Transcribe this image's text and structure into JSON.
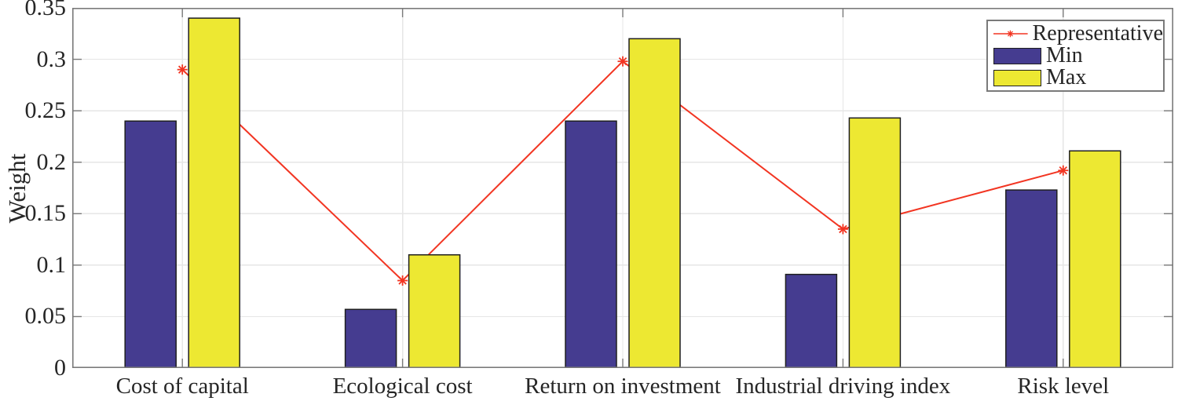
{
  "chart_data": {
    "type": "bar",
    "subtype": "grouped-bars-with-line-overlay",
    "categories": [
      "Cost of capital",
      "Ecological cost",
      "Return on investment",
      "Industrial driving index",
      "Risk level"
    ],
    "series": [
      {
        "name": "Representative",
        "type": "line",
        "marker": "asterisk",
        "color": "#f23522",
        "values": [
          0.29,
          0.085,
          0.298,
          0.135,
          0.192
        ]
      },
      {
        "name": "Min",
        "type": "bar",
        "color": "#453c90",
        "values": [
          0.24,
          0.057,
          0.24,
          0.091,
          0.173
        ]
      },
      {
        "name": "Max",
        "type": "bar",
        "color": "#ede832",
        "values": [
          0.34,
          0.11,
          0.32,
          0.243,
          0.211
        ]
      }
    ],
    "title": "",
    "xlabel": "",
    "ylabel": "Weight",
    "ylim": [
      0,
      0.35
    ],
    "yticks": [
      0,
      0.05,
      0.1,
      0.15,
      0.2,
      0.25,
      0.3,
      0.35
    ],
    "ytick_labels": [
      "0",
      "0.05",
      "0.1",
      "0.15",
      "0.2",
      "0.25",
      "0.3",
      "0.35"
    ],
    "grid": true,
    "legend": {
      "position": "top-right",
      "entries": [
        "Representative",
        "Min",
        "Max"
      ]
    }
  },
  "colors": {
    "axis_box": "#7a7a7a",
    "tick": "#7a7a7a",
    "grid": "#e6e6e6",
    "text": "#262626",
    "bar_edge": "#1f1f1f",
    "background": "#ffffff"
  }
}
